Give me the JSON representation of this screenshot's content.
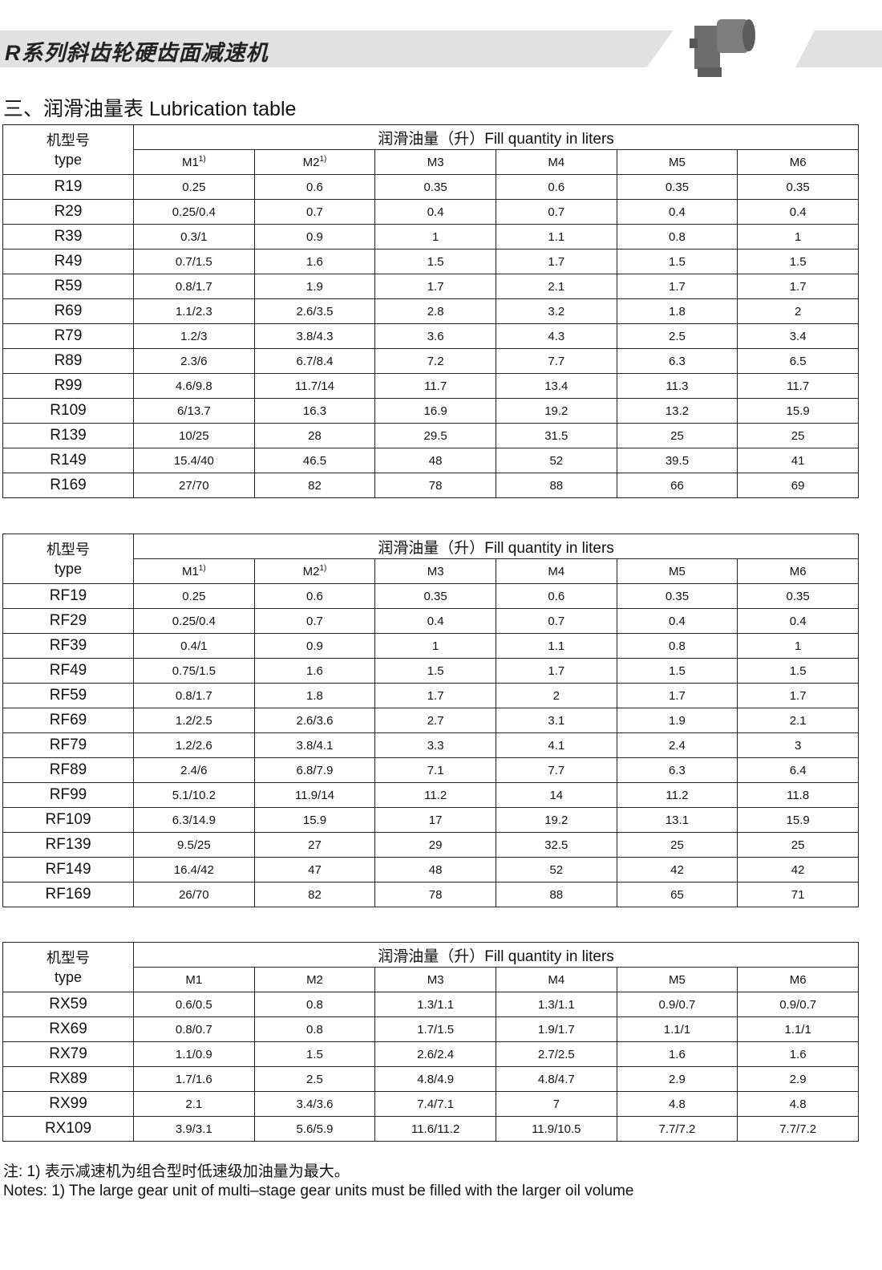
{
  "header": {
    "title": "R系列斜齿轮硬齿面减速机",
    "image": "gear-reducer-photo"
  },
  "section_title": "三、润滑油量表  Lubrication table",
  "tables": [
    {
      "type_label_cn": "机型号",
      "type_label_en": "type",
      "fill_label": "润滑油量（升）Fill quantity in liters",
      "columns": [
        "M1",
        "M2",
        "M3",
        "M4",
        "M5",
        "M6"
      ],
      "footnote_marks": [
        "1)",
        "1)",
        "",
        "",
        "",
        ""
      ],
      "rows": [
        [
          "R19",
          "0.25",
          "0.6",
          "0.35",
          "0.6",
          "0.35",
          "0.35"
        ],
        [
          "R29",
          "0.25/0.4",
          "0.7",
          "0.4",
          "0.7",
          "0.4",
          "0.4"
        ],
        [
          "R39",
          "0.3/1",
          "0.9",
          "1",
          "1.1",
          "0.8",
          "1"
        ],
        [
          "R49",
          "0.7/1.5",
          "1.6",
          "1.5",
          "1.7",
          "1.5",
          "1.5"
        ],
        [
          "R59",
          "0.8/1.7",
          "1.9",
          "1.7",
          "2.1",
          "1.7",
          "1.7"
        ],
        [
          "R69",
          "1.1/2.3",
          "2.6/3.5",
          "2.8",
          "3.2",
          "1.8",
          "2"
        ],
        [
          "R79",
          "1.2/3",
          "3.8/4.3",
          "3.6",
          "4.3",
          "2.5",
          "3.4"
        ],
        [
          "R89",
          "2.3/6",
          "6.7/8.4",
          "7.2",
          "7.7",
          "6.3",
          "6.5"
        ],
        [
          "R99",
          "4.6/9.8",
          "11.7/14",
          "11.7",
          "13.4",
          "11.3",
          "11.7"
        ],
        [
          "R109",
          "6/13.7",
          "16.3",
          "16.9",
          "19.2",
          "13.2",
          "15.9"
        ],
        [
          "R139",
          "10/25",
          "28",
          "29.5",
          "31.5",
          "25",
          "25"
        ],
        [
          "R149",
          "15.4/40",
          "46.5",
          "48",
          "52",
          "39.5",
          "41"
        ],
        [
          "R169",
          "27/70",
          "82",
          "78",
          "88",
          "66",
          "69"
        ]
      ]
    },
    {
      "type_label_cn": "机型号",
      "type_label_en": "type",
      "fill_label": "润滑油量（升）Fill quantity in liters",
      "columns": [
        "M1",
        "M2",
        "M3",
        "M4",
        "M5",
        "M6"
      ],
      "footnote_marks": [
        "1)",
        "1)",
        "",
        "",
        "",
        ""
      ],
      "rows": [
        [
          "RF19",
          "0.25",
          "0.6",
          "0.35",
          "0.6",
          "0.35",
          "0.35"
        ],
        [
          "RF29",
          "0.25/0.4",
          "0.7",
          "0.4",
          "0.7",
          "0.4",
          "0.4"
        ],
        [
          "RF39",
          "0.4/1",
          "0.9",
          "1",
          "1.1",
          "0.8",
          "1"
        ],
        [
          "RF49",
          "0.75/1.5",
          "1.6",
          "1.5",
          "1.7",
          "1.5",
          "1.5"
        ],
        [
          "RF59",
          "0.8/1.7",
          "1.8",
          "1.7",
          "2",
          "1.7",
          "1.7"
        ],
        [
          "RF69",
          "1.2/2.5",
          "2.6/3.6",
          "2.7",
          "3.1",
          "1.9",
          "2.1"
        ],
        [
          "RF79",
          "1.2/2.6",
          "3.8/4.1",
          "3.3",
          "4.1",
          "2.4",
          "3"
        ],
        [
          "RF89",
          "2.4/6",
          "6.8/7.9",
          "7.1",
          "7.7",
          "6.3",
          "6.4"
        ],
        [
          "RF99",
          "5.1/10.2",
          "11.9/14",
          "11.2",
          "14",
          "11.2",
          "11.8"
        ],
        [
          "RF109",
          "6.3/14.9",
          "15.9",
          "17",
          "19.2",
          "13.1",
          "15.9"
        ],
        [
          "RF139",
          "9.5/25",
          "27",
          "29",
          "32.5",
          "25",
          "25"
        ],
        [
          "RF149",
          "16.4/42",
          "47",
          "48",
          "52",
          "42",
          "42"
        ],
        [
          "RF169",
          "26/70",
          "82",
          "78",
          "88",
          "65",
          "71"
        ]
      ]
    },
    {
      "type_label_cn": "机型号",
      "type_label_en": "type",
      "fill_label": "润滑油量（升）Fill quantity in liters",
      "columns": [
        "M1",
        "M2",
        "M3",
        "M4",
        "M5",
        "M6"
      ],
      "footnote_marks": [
        "",
        "",
        "",
        "",
        "",
        ""
      ],
      "rows": [
        [
          "RX59",
          "0.6/0.5",
          "0.8",
          "1.3/1.1",
          "1.3/1.1",
          "0.9/0.7",
          "0.9/0.7"
        ],
        [
          "RX69",
          "0.8/0.7",
          "0.8",
          "1.7/1.5",
          "1.9/1.7",
          "1.1/1",
          "1.1/1"
        ],
        [
          "RX79",
          "1.1/0.9",
          "1.5",
          "2.6/2.4",
          "2.7/2.5",
          "1.6",
          "1.6"
        ],
        [
          "RX89",
          "1.7/1.6",
          "2.5",
          "4.8/4.9",
          "4.8/4.7",
          "2.9",
          "2.9"
        ],
        [
          "RX99",
          "2.1",
          "3.4/3.6",
          "7.4/7.1",
          "7",
          "4.8",
          "4.8"
        ],
        [
          "RX109",
          "3.9/3.1",
          "5.6/5.9",
          "11.6/11.2",
          "11.9/10.5",
          "7.7/7.2",
          "7.7/7.2"
        ]
      ]
    }
  ],
  "notes": {
    "cn": "注: 1) 表示减速机为组合型时低速级加油量为最大。",
    "en": "Notes: 1) The large gear unit of multi–stage gear units must be filled with the larger oil volume"
  }
}
